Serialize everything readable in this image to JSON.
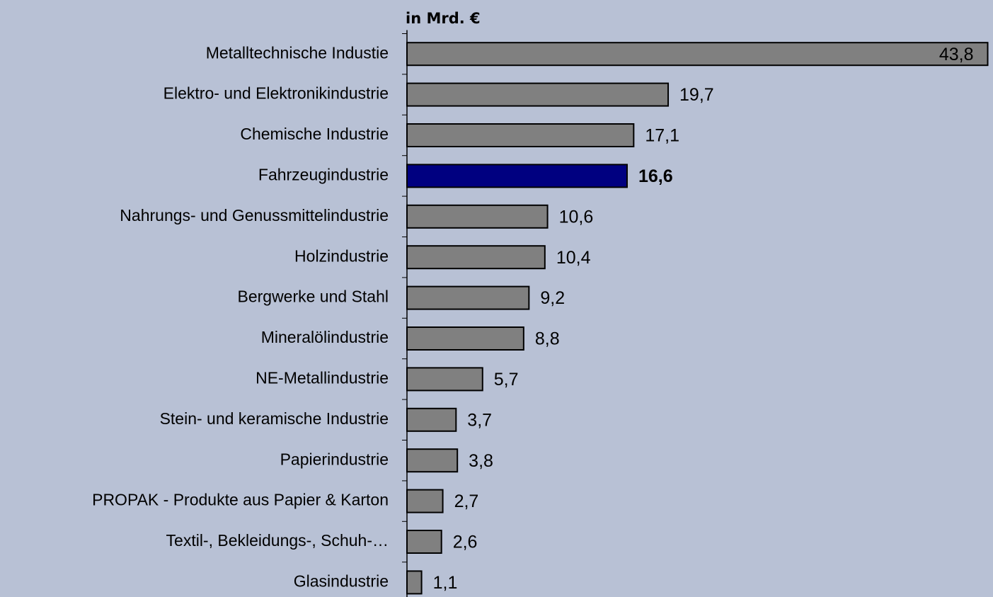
{
  "chart_data": {
    "type": "bar",
    "orientation": "horizontal",
    "x_label": "in Mrd. €",
    "categories": [
      "Metalltechnische Industie",
      "Elektro- und Elektronikindustrie",
      "Chemische Industrie",
      "Fahrzeugindustrie",
      "Nahrungs- und Genussmittelindustrie",
      "Holzindustrie",
      "Bergwerke und Stahl",
      "Mineralölindustrie",
      "NE-Metallindustrie",
      "Stein- und keramische Industrie",
      "Papierindustrie",
      "PROPAK - Produkte aus Papier & Karton",
      "Textil-, Bekleidungs-, Schuh-…",
      "Glasindustrie"
    ],
    "values": [
      43.8,
      19.7,
      17.1,
      16.6,
      10.6,
      10.4,
      9.2,
      8.8,
      5.7,
      3.7,
      3.8,
      2.7,
      2.6,
      1.1
    ],
    "value_labels": [
      "43,8",
      "19,7",
      "17,1",
      "16,6",
      "10,6",
      "10,4",
      "9,2",
      "8,8",
      "5,7",
      "3,7",
      "3,8",
      "2,7",
      "2,6",
      "1,1"
    ],
    "colors": [
      "#808080",
      "#808080",
      "#808080",
      "#000080",
      "#808080",
      "#808080",
      "#808080",
      "#808080",
      "#808080",
      "#808080",
      "#808080",
      "#808080",
      "#808080",
      "#808080"
    ],
    "xlim": [
      0,
      44.2
    ]
  }
}
